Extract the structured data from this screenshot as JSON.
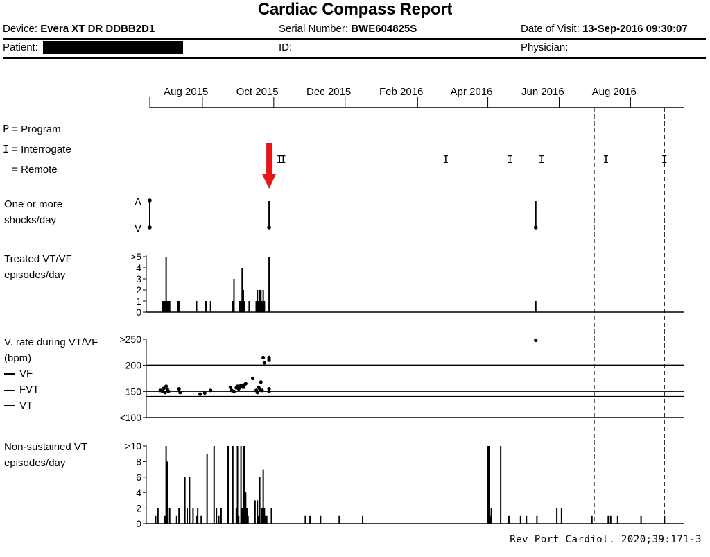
{
  "header": {
    "title": "Cardiac Compass Report",
    "device_label": "Device:",
    "device_value": "Evera XT DR DDBB2D1",
    "serial_label": "Serial Number:",
    "serial_value": "BWE604825S",
    "visit_label": "Date of Visit:",
    "visit_value": "13-Sep-2016 09:30:07",
    "patient_label": "Patient:",
    "id_label": "ID:",
    "physician_label": "Physician:"
  },
  "legend": {
    "program": "= Program",
    "program_symbol": "P",
    "interrogate": "= Interrogate",
    "interrogate_symbol": "I",
    "remote": "= Remote",
    "remote_symbol": "_"
  },
  "panels": {
    "shocks_label_1": "One or more",
    "shocks_label_2": "shocks/day",
    "shocks_A": "A",
    "shocks_V": "V",
    "treated_label_1": "Treated VT/VF",
    "treated_label_2": "episodes/day",
    "rate_label_1": "V. rate during VT/VF",
    "rate_label_2": "(bpm)",
    "rate_vf": "VF",
    "rate_fvt": "FVT",
    "rate_vt": "VT",
    "nsvt_label_1": "Non-sustained VT",
    "nsvt_label_2": "episodes/day"
  },
  "citation": "Rev Port Cardiol. 2020;39:171-3",
  "colors": {
    "arrow": "#e8141b",
    "ink": "#000000"
  },
  "chart_data": {
    "type": "bar",
    "x_axis": {
      "range": [
        "2015-07-01",
        "2016-09-30"
      ],
      "tick_labels": [
        "Aug 2015",
        "Oct 2015",
        "Dec 2015",
        "Feb 2016",
        "Apr 2016",
        "Jun 2016",
        "Aug 2016"
      ],
      "dashed_markers": [
        "2016-07-15",
        "2016-09-13"
      ]
    },
    "interrogations": [
      "2015-10-20",
      "2015-10-23",
      "2016-03-10",
      "2016-05-04",
      "2016-05-31",
      "2016-07-25",
      "2016-09-13"
    ],
    "arrow_date": "2015-10-11",
    "shocks": {
      "dates": [
        "2015-07-01",
        "2015-10-11",
        "2016-05-26"
      ],
      "ticks": [
        "A",
        "V"
      ]
    },
    "treated_vt_vf": {
      "y_ticks": [
        "0",
        "1",
        "2",
        "3",
        "4",
        ">5"
      ],
      "dates": [
        "2015-07-12",
        "2015-07-13",
        "2015-07-14",
        "2015-07-15",
        "2015-07-16",
        "2015-07-17",
        "2015-07-18",
        "2015-07-25",
        "2015-07-26",
        "2015-08-10",
        "2015-08-18",
        "2015-08-22",
        "2015-09-10",
        "2015-09-11",
        "2015-09-16",
        "2015-09-17",
        "2015-09-18",
        "2015-09-19",
        "2015-09-20",
        "2015-09-24",
        "2015-09-30",
        "2015-10-01",
        "2015-10-02",
        "2015-10-03",
        "2015-10-04",
        "2015-10-05",
        "2015-10-06",
        "2015-10-07",
        "2015-10-11",
        "2016-05-26"
      ],
      "values": [
        1,
        1,
        1,
        5,
        1,
        1,
        1,
        1,
        1,
        1,
        1,
        1,
        1,
        3,
        1,
        1,
        4,
        2,
        1,
        1,
        1,
        2,
        1,
        2,
        2,
        1,
        2,
        1,
        5,
        1
      ]
    },
    "v_rate": {
      "y_ticks": [
        "<100",
        "150",
        "200",
        ">250"
      ],
      "zones": {
        "VF": 200,
        "FVT": 150,
        "VT": 140
      },
      "dates": [
        "2015-07-10",
        "2015-07-12",
        "2015-07-13",
        "2015-07-14",
        "2015-07-15",
        "2015-07-16",
        "2015-07-17",
        "2015-07-26",
        "2015-07-27",
        "2015-08-13",
        "2015-08-17",
        "2015-08-22",
        "2015-09-08",
        "2015-09-09",
        "2015-09-11",
        "2015-09-13",
        "2015-09-14",
        "2015-09-15",
        "2015-09-16",
        "2015-09-17",
        "2015-09-18",
        "2015-09-19",
        "2015-09-20",
        "2015-09-21",
        "2015-09-27",
        "2015-09-30",
        "2015-10-01",
        "2015-10-02",
        "2015-10-03",
        "2015-10-04",
        "2015-10-05",
        "2015-10-06",
        "2015-10-07",
        "2015-10-11",
        "2015-10-11",
        "2015-10-11",
        "2015-10-11",
        "2016-05-26"
      ],
      "values": [
        152,
        150,
        156,
        148,
        160,
        154,
        150,
        155,
        148,
        145,
        147,
        152,
        158,
        152,
        150,
        157,
        160,
        155,
        158,
        162,
        160,
        158,
        163,
        165,
        175,
        152,
        148,
        158,
        155,
        168,
        152,
        215,
        205,
        215,
        210,
        150,
        155,
        248
      ]
    },
    "nsvt": {
      "y_ticks": [
        "0",
        "2",
        "4",
        "6",
        "8",
        ">10"
      ],
      "dates": [
        "2015-07-06",
        "2015-07-08",
        "2015-07-14",
        "2015-07-15",
        "2015-07-16",
        "2015-07-18",
        "2015-07-24",
        "2015-07-26",
        "2015-07-31",
        "2015-08-02",
        "2015-08-04",
        "2015-08-07",
        "2015-08-10",
        "2015-08-11",
        "2015-08-14",
        "2015-08-19",
        "2015-08-25",
        "2015-08-27",
        "2015-08-29",
        "2015-08-31",
        "2015-09-06",
        "2015-09-10",
        "2015-09-13",
        "2015-09-14",
        "2015-09-15",
        "2015-09-17",
        "2015-09-18",
        "2015-09-19",
        "2015-09-20",
        "2015-09-21",
        "2015-09-22",
        "2015-09-23",
        "2015-09-29",
        "2015-10-01",
        "2015-10-02",
        "2015-10-03",
        "2015-10-05",
        "2015-10-06",
        "2015-10-07",
        "2015-10-08",
        "2015-10-09",
        "2015-10-13",
        "2015-11-11",
        "2015-11-15",
        "2015-11-24",
        "2015-12-10",
        "2015-12-30",
        "2016-04-15",
        "2016-04-16",
        "2016-04-17",
        "2016-04-18",
        "2016-04-26",
        "2016-05-03",
        "2016-05-13",
        "2016-05-18",
        "2016-05-27",
        "2016-06-13",
        "2016-06-17",
        "2016-07-13",
        "2016-07-27",
        "2016-07-29",
        "2016-08-04",
        "2016-08-24",
        "2016-09-13"
      ],
      "values": [
        1,
        2,
        1,
        10,
        8,
        2,
        1,
        2,
        6,
        2,
        6,
        2,
        1,
        2,
        1,
        9,
        10,
        2,
        1,
        2,
        10,
        10,
        2,
        10,
        1,
        10,
        2,
        10,
        10,
        4,
        2,
        1,
        3,
        3,
        1,
        6,
        2,
        7,
        2,
        1,
        1,
        2,
        1,
        1,
        1,
        1,
        1,
        10,
        10,
        1,
        2,
        10,
        1,
        1,
        1,
        1,
        2,
        2,
        1,
        1,
        1,
        1,
        1,
        1
      ]
    }
  }
}
